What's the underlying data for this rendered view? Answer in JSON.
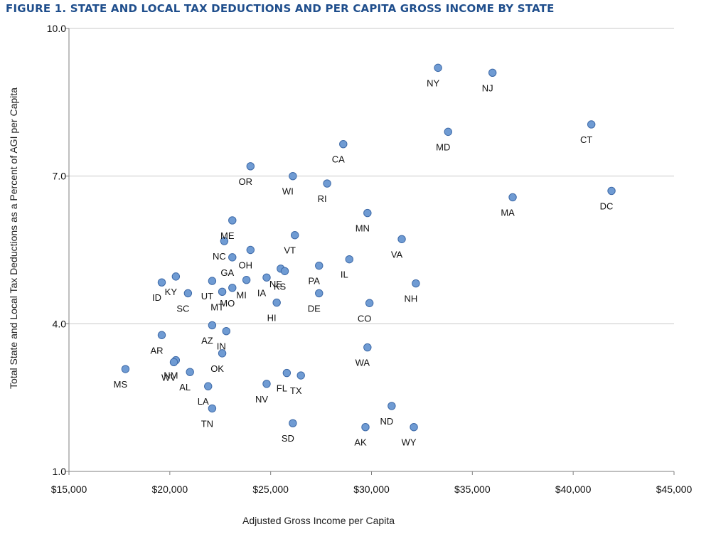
{
  "figure_title": "FIGURE 1. STATE AND LOCAL TAX DEDUCTIONS AND PER CAPITA GROSS INCOME BY STATE",
  "colors": {
    "title": "#1f4e8c",
    "point_fill": "#6f9bd3",
    "point_stroke": "#3e6aa8",
    "gridline": "#c8c8c8",
    "axis": "#7f7f7f"
  },
  "chart_data": {
    "type": "scatter",
    "title": "",
    "xlabel": "Adjusted Gross Income per Capita",
    "ylabel": "Total State and Local Tax Deductions as a Percent of AGI per Capita",
    "xlim": [
      15000,
      45000
    ],
    "ylim": [
      1.0,
      10.0
    ],
    "x_ticks": [
      15000,
      20000,
      25000,
      30000,
      35000,
      40000,
      45000
    ],
    "x_tick_labels": [
      "$15,000",
      "$20,000",
      "$25,000",
      "$30,000",
      "$35,000",
      "$40,000",
      "$45,000"
    ],
    "y_ticks": [
      1.0,
      4.0,
      7.0,
      10.0
    ],
    "y_tick_labels": [
      "1.0",
      "4.0",
      "7.0",
      "10.0"
    ],
    "grid": "horizontal",
    "points": [
      {
        "label": "NY",
        "x": 33300,
        "y": 9.2
      },
      {
        "label": "NJ",
        "x": 36000,
        "y": 9.1
      },
      {
        "label": "CT",
        "x": 40900,
        "y": 8.05
      },
      {
        "label": "MD",
        "x": 33800,
        "y": 7.9
      },
      {
        "label": "CA",
        "x": 28600,
        "y": 7.65
      },
      {
        "label": "OR",
        "x": 24000,
        "y": 7.2
      },
      {
        "label": "WI",
        "x": 26100,
        "y": 7.0
      },
      {
        "label": "RI",
        "x": 27800,
        "y": 6.85
      },
      {
        "label": "DC",
        "x": 41900,
        "y": 6.7
      },
      {
        "label": "MA",
        "x": 37000,
        "y": 6.57
      },
      {
        "label": "MN",
        "x": 29800,
        "y": 6.25
      },
      {
        "label": "ME",
        "x": 23100,
        "y": 6.1
      },
      {
        "label": "VT",
        "x": 26200,
        "y": 5.8
      },
      {
        "label": "VA",
        "x": 31500,
        "y": 5.72
      },
      {
        "label": "NC",
        "x": 22700,
        "y": 5.68
      },
      {
        "label": "OH",
        "x": 24000,
        "y": 5.5
      },
      {
        "label": "GA",
        "x": 23100,
        "y": 5.35
      },
      {
        "label": "IL",
        "x": 28900,
        "y": 5.31
      },
      {
        "label": "PA",
        "x": 27400,
        "y": 5.18
      },
      {
        "label": "NE",
        "x": 25500,
        "y": 5.12
      },
      {
        "label": "KS",
        "x": 25700,
        "y": 5.07
      },
      {
        "label": "KY",
        "x": 20300,
        "y": 4.96
      },
      {
        "label": "IA",
        "x": 24800,
        "y": 4.94
      },
      {
        "label": "MI",
        "x": 23800,
        "y": 4.89
      },
      {
        "label": "UT",
        "x": 22100,
        "y": 4.87
      },
      {
        "label": "ID",
        "x": 19600,
        "y": 4.84
      },
      {
        "label": "NH",
        "x": 32200,
        "y": 4.82
      },
      {
        "label": "MO",
        "x": 23100,
        "y": 4.73
      },
      {
        "label": "MT",
        "x": 22600,
        "y": 4.65
      },
      {
        "label": "SC",
        "x": 20900,
        "y": 4.62
      },
      {
        "label": "DE",
        "x": 27400,
        "y": 4.62
      },
      {
        "label": "HI",
        "x": 25300,
        "y": 4.43
      },
      {
        "label": "CO",
        "x": 29900,
        "y": 4.42
      },
      {
        "label": "AZ",
        "x": 22100,
        "y": 3.97
      },
      {
        "label": "IN",
        "x": 22800,
        "y": 3.85
      },
      {
        "label": "AR",
        "x": 19600,
        "y": 3.77
      },
      {
        "label": "WA",
        "x": 29800,
        "y": 3.52
      },
      {
        "label": "OK",
        "x": 22600,
        "y": 3.4
      },
      {
        "label": "NM",
        "x": 20300,
        "y": 3.26
      },
      {
        "label": "WV",
        "x": 20200,
        "y": 3.22
      },
      {
        "label": "MS",
        "x": 17800,
        "y": 3.08
      },
      {
        "label": "AL",
        "x": 21000,
        "y": 3.02
      },
      {
        "label": "FL",
        "x": 25800,
        "y": 3.0
      },
      {
        "label": "TX",
        "x": 26500,
        "y": 2.95
      },
      {
        "label": "NV",
        "x": 24800,
        "y": 2.78
      },
      {
        "label": "LA",
        "x": 21900,
        "y": 2.73
      },
      {
        "label": "ND",
        "x": 31000,
        "y": 2.33
      },
      {
        "label": "TN",
        "x": 22100,
        "y": 2.28
      },
      {
        "label": "SD",
        "x": 26100,
        "y": 1.98
      },
      {
        "label": "AK",
        "x": 29700,
        "y": 1.9
      },
      {
        "label": "WY",
        "x": 32100,
        "y": 1.9
      }
    ]
  }
}
